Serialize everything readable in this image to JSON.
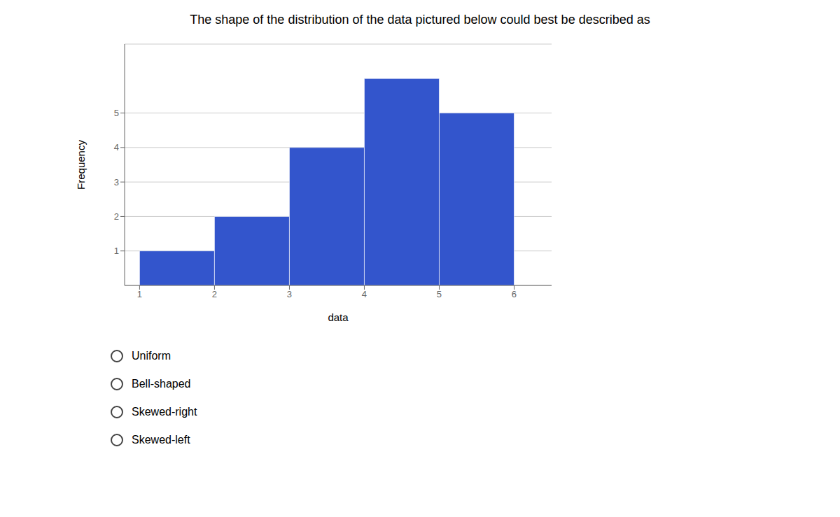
{
  "chart_data": {
    "type": "histogram",
    "title": "The shape of the distribution of the data pictured below could best be described as",
    "bins": [
      1,
      2,
      3,
      4,
      5,
      6
    ],
    "values": [
      1,
      2,
      4,
      6,
      5
    ],
    "color": "#3355CC",
    "xlabel": "data",
    "ylabel": "Frequency",
    "xlim": [
      0.8,
      6.5
    ],
    "ylim": [
      0,
      7
    ],
    "xticks": [
      1,
      2,
      3,
      4,
      5,
      6
    ],
    "yticks": [
      1,
      2,
      3,
      4,
      5
    ],
    "grid": true,
    "annotations": [
      "Uniform",
      "Bell-shaped",
      "Skewed-right",
      "Skewed-left"
    ]
  }
}
